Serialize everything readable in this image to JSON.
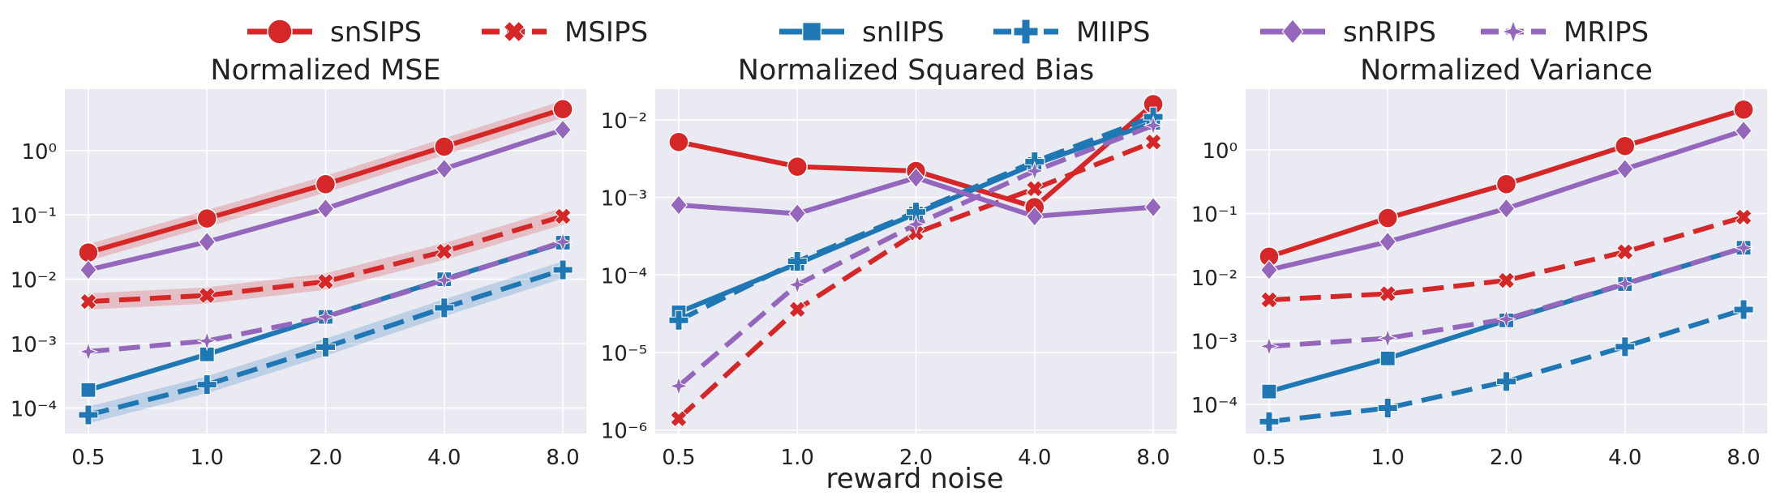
{
  "figure": {
    "xlabel": "reward noise"
  },
  "legend": {
    "entries": [
      {
        "name": "snSIPS",
        "color": "#d62728",
        "marker": "circle",
        "dash": "solid"
      },
      {
        "name": "MSIPS",
        "color": "#d62728",
        "marker": "x",
        "dash": "dashed"
      },
      {
        "name": "snIIPS",
        "color": "#1f77b4",
        "marker": "square",
        "dash": "solid"
      },
      {
        "name": "MIIPS",
        "color": "#1f77b4",
        "marker": "plus",
        "dash": "dashed"
      },
      {
        "name": "snRIPS",
        "color": "#9467bd",
        "marker": "diamond",
        "dash": "solid"
      },
      {
        "name": "MRIPS",
        "color": "#9467bd",
        "marker": "star",
        "dash": "dashed"
      }
    ],
    "placement": "top-center"
  },
  "chart_data": [
    {
      "type": "line",
      "title": "Normalized MSE",
      "categories": [
        "0.5",
        "1.0",
        "2.0",
        "4.0",
        "8.0"
      ],
      "yscale": "log",
      "ylim": [
        4e-05,
        9
      ],
      "yticks": [
        -4,
        -3,
        -2,
        -1,
        0
      ],
      "grid": true,
      "series": [
        {
          "name": "snSIPS",
          "values": [
            0.026,
            0.088,
            0.3,
            1.15,
            4.4
          ],
          "band": true
        },
        {
          "name": "MSIPS",
          "values": [
            0.0045,
            0.0056,
            0.0092,
            0.027,
            0.095
          ],
          "band": true
        },
        {
          "name": "snIIPS",
          "values": [
            0.00019,
            0.00068,
            0.0026,
            0.01,
            0.037
          ],
          "band": false
        },
        {
          "name": "MIIPS",
          "values": [
            7.8e-05,
            0.00023,
            0.00088,
            0.0036,
            0.014
          ],
          "band": true
        },
        {
          "name": "snRIPS",
          "values": [
            0.014,
            0.038,
            0.125,
            0.52,
            2.1
          ],
          "band": false
        },
        {
          "name": "MRIPS",
          "values": [
            0.00075,
            0.0011,
            0.0026,
            0.0097,
            0.038
          ],
          "band": false
        }
      ]
    },
    {
      "type": "line",
      "title": "Normalized Squared Bias",
      "categories": [
        "0.5",
        "1.0",
        "2.0",
        "4.0",
        "8.0"
      ],
      "yscale": "log",
      "ylim": [
        9e-07,
        0.025
      ],
      "yticks": [
        -6,
        -5,
        -4,
        -3,
        -2
      ],
      "grid": true,
      "series": [
        {
          "name": "snSIPS",
          "values": [
            0.0052,
            0.0025,
            0.0022,
            0.00075,
            0.016
          ],
          "band": false
        },
        {
          "name": "MSIPS",
          "values": [
            1.4e-06,
            3.6e-05,
            0.00035,
            0.0013,
            0.0052
          ],
          "band": false
        },
        {
          "name": "snIIPS",
          "values": [
            3.3e-05,
            0.00014,
            0.00062,
            0.0027,
            0.0092
          ],
          "band": false
        },
        {
          "name": "MIIPS",
          "values": [
            2.6e-05,
            0.00015,
            0.00065,
            0.0029,
            0.011
          ],
          "band": false
        },
        {
          "name": "snRIPS",
          "values": [
            0.0008,
            0.00062,
            0.0018,
            0.00057,
            0.00075
          ],
          "band": false
        },
        {
          "name": "MRIPS",
          "values": [
            3.7e-06,
            7.5e-05,
            0.00045,
            0.0022,
            0.0085
          ],
          "band": false
        }
      ]
    },
    {
      "type": "line",
      "title": "Normalized Variance",
      "categories": [
        "0.5",
        "1.0",
        "2.0",
        "4.0",
        "8.0"
      ],
      "yscale": "log",
      "ylim": [
        3.5e-05,
        9
      ],
      "yticks": [
        -4,
        -3,
        -2,
        -1,
        0
      ],
      "grid": true,
      "series": [
        {
          "name": "snSIPS",
          "values": [
            0.021,
            0.085,
            0.29,
            1.15,
            4.3
          ],
          "band": false
        },
        {
          "name": "MSIPS",
          "values": [
            0.0044,
            0.0055,
            0.0089,
            0.025,
            0.088
          ],
          "band": false
        },
        {
          "name": "snIIPS",
          "values": [
            0.00016,
            0.00053,
            0.0021,
            0.0078,
            0.029
          ],
          "band": false
        },
        {
          "name": "MIIPS",
          "values": [
            5.4e-05,
            8.8e-05,
            0.00023,
            0.00081,
            0.0031
          ],
          "band": false
        },
        {
          "name": "snRIPS",
          "values": [
            0.013,
            0.036,
            0.12,
            0.5,
            2.0
          ],
          "band": false
        },
        {
          "name": "MRIPS",
          "values": [
            0.00082,
            0.0011,
            0.0022,
            0.0079,
            0.029
          ],
          "band": false
        }
      ]
    }
  ]
}
